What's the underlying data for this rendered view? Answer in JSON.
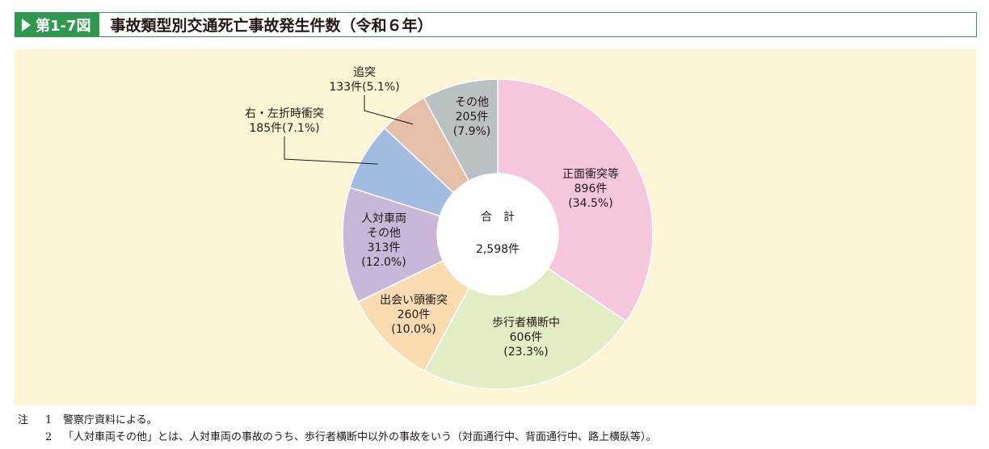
{
  "header": {
    "figure_label": "第1-7図",
    "title": "事故類型別交通死亡事故発生件数（令和６年）"
  },
  "chart_data": {
    "type": "pie",
    "donut": true,
    "center_label": {
      "line1": "合　計",
      "line2": "2,598件"
    },
    "total": 2598,
    "unit": "件",
    "slices": [
      {
        "label": "正面衝突等",
        "value": 896,
        "count_text": "896件",
        "percent_text": "(34.5%)",
        "percent": 34.5,
        "color": "#f6c6dc"
      },
      {
        "label": "歩行者横断中",
        "value": 606,
        "count_text": "606件",
        "percent_text": "(23.3%)",
        "percent": 23.3,
        "color": "#e3edc4"
      },
      {
        "label": "出会い頭衝突",
        "value": 260,
        "count_text": "260件",
        "percent_text": "(10.0%)",
        "percent": 10.0,
        "color": "#fbdcb0"
      },
      {
        "label": "人対車両その他",
        "label_lines": [
          "人対車両",
          "その他"
        ],
        "value": 313,
        "count_text": "313件",
        "percent_text": "(12.0%)",
        "percent": 12.0,
        "color": "#c9b6d8"
      },
      {
        "label": "右・左折時衝突",
        "value": 185,
        "count_text": "185件",
        "percent_text": "(7.1%)",
        "percent": 7.1,
        "color": "#a1bce1"
      },
      {
        "label": "追突",
        "value": 133,
        "count_text": "133件",
        "percent_text": "(5.1%)",
        "percent": 5.1,
        "color": "#e5bfa8"
      },
      {
        "label": "その他",
        "value": 205,
        "count_text": "205件",
        "percent_text": "(7.9%)",
        "percent": 7.9,
        "color": "#b9c1c3"
      }
    ]
  },
  "notes": [
    {
      "marker": "注",
      "num": "1",
      "text": "警察庁資料による。"
    },
    {
      "marker": "",
      "num": "2",
      "text": "「人対車両その他」とは、人対車両の事故のうち、歩行者横断中以外の事故をいう（対面通行中、背面通行中、路上横臥等）。"
    }
  ]
}
